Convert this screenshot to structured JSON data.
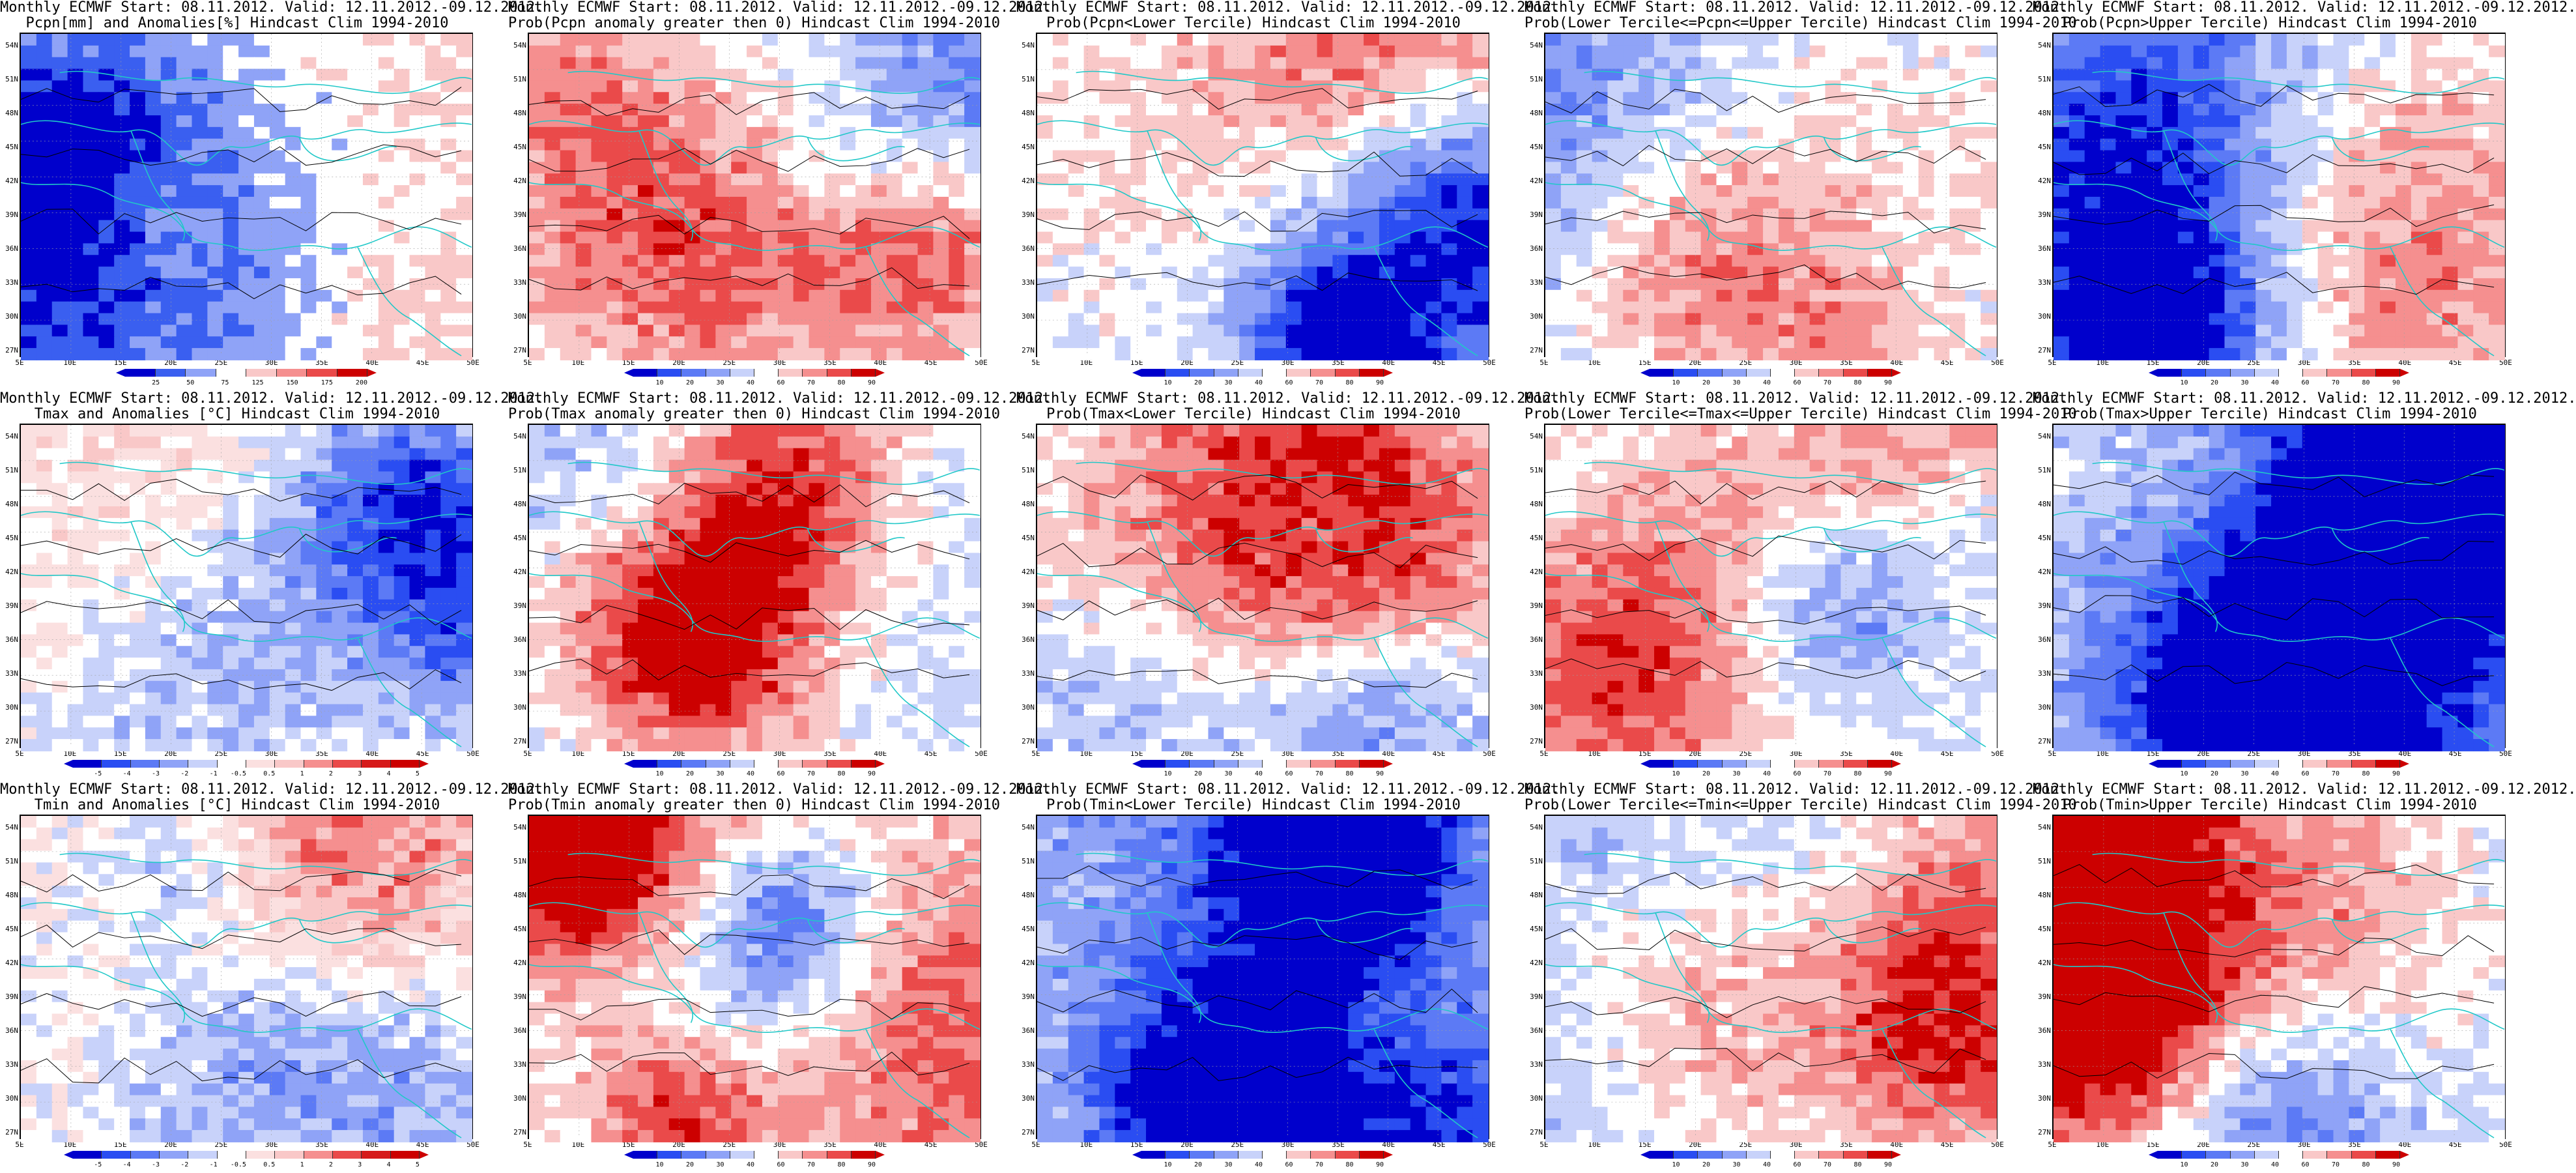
{
  "panels": [
    {
      "title1": "Monthly ECMWF Start: 08.11.2012. Valid: 12.11.2012.-09.12.2012.",
      "title2": "Pcpn[mm] and Anomalies[%] Hindcast Clim 1994-2010",
      "scale": "anom",
      "cb_labels": [
        "25",
        "50",
        "75",
        "125",
        "150",
        "175",
        "200"
      ]
    },
    {
      "title1": "Monthly ECMWF Start: 08.11.2012. Valid: 12.11.2012.-09.12.2012.",
      "title2": "Prob(Pcpn anomaly greater then 0) Hindcast Clim 1994-2010",
      "scale": "prob",
      "cb_labels": [
        "10",
        "20",
        "30",
        "40",
        "60",
        "70",
        "80",
        "90"
      ]
    },
    {
      "title1": "Monthly ECMWF Start: 08.11.2012. Valid: 12.11.2012.-09.12.2012.",
      "title2": "Prob(Pcpn<Lower Tercile) Hindcast Clim 1994-2010",
      "scale": "prob",
      "cb_labels": [
        "10",
        "20",
        "30",
        "40",
        "60",
        "70",
        "80",
        "90"
      ]
    },
    {
      "title1": "Monthly ECMWF Start: 08.11.2012. Valid: 12.11.2012.-09.12.2012.",
      "title2": "Prob(Lower Tercile<=Pcpn<=Upper Tercile) Hindcast Clim 1994-2010",
      "scale": "prob",
      "cb_labels": [
        "10",
        "20",
        "30",
        "40",
        "60",
        "70",
        "80",
        "90"
      ]
    },
    {
      "title1": "Monthly ECMWF Start: 08.11.2012. Valid: 12.11.2012.-09.12.2012.",
      "title2": "Prob(Pcpn>Upper Tercile) Hindcast Clim 1994-2010",
      "scale": "prob",
      "cb_labels": [
        "10",
        "20",
        "30",
        "40",
        "60",
        "70",
        "80",
        "90"
      ]
    },
    {
      "title1": "Monthly ECMWF Start: 08.11.2012. Valid: 12.11.2012.-09.12.2012.",
      "title2": "Tmax and Anomalies [°C] Hindcast Clim 1994-2010",
      "scale": "temp",
      "cb_labels": [
        "-5",
        "-4",
        "-3",
        "-2",
        "-1",
        "-0.5",
        "0.5",
        "1",
        "2",
        "3",
        "4",
        "5"
      ]
    },
    {
      "title1": "Monthly ECMWF Start: 08.11.2012. Valid: 12.11.2012.-09.12.2012.",
      "title2": "Prob(Tmax anomaly greater then 0) Hindcast Clim 1994-2010",
      "scale": "prob",
      "cb_labels": [
        "10",
        "20",
        "30",
        "40",
        "60",
        "70",
        "80",
        "90"
      ]
    },
    {
      "title1": "Monthly ECMWF Start: 08.11.2012. Valid: 12.11.2012.-09.12.2012.",
      "title2": "Prob(Tmax<Lower Tercile) Hindcast Clim 1994-2010",
      "scale": "prob",
      "cb_labels": [
        "10",
        "20",
        "30",
        "40",
        "60",
        "70",
        "80",
        "90"
      ]
    },
    {
      "title1": "Monthly ECMWF Start: 08.11.2012. Valid: 12.11.2012.-09.12.2012.",
      "title2": "Prob(Lower Tercile<=Tmax<=Upper Tercile) Hindcast Clim 1994-2010",
      "scale": "prob",
      "cb_labels": [
        "10",
        "20",
        "30",
        "40",
        "60",
        "70",
        "80",
        "90"
      ]
    },
    {
      "title1": "Monthly ECMWF Start: 08.11.2012. Valid: 12.11.2012.-09.12.2012.",
      "title2": "Prob(Tmax>Upper Tercile) Hindcast Clim 1994-2010",
      "scale": "prob",
      "cb_labels": [
        "10",
        "20",
        "30",
        "40",
        "60",
        "70",
        "80",
        "90"
      ]
    },
    {
      "title1": "Monthly ECMWF Start: 08.11.2012. Valid: 12.11.2012.-09.12.2012.",
      "title2": "Tmin and Anomalies [°C] Hindcast Clim 1994-2010",
      "scale": "temp",
      "cb_labels": [
        "-5",
        "-4",
        "-3",
        "-2",
        "-1",
        "-0.5",
        "0.5",
        "1",
        "2",
        "3",
        "4",
        "5"
      ]
    },
    {
      "title1": "Monthly ECMWF Start: 08.11.2012. Valid: 12.11.2012.-09.12.2012.",
      "title2": "Prob(Tmin anomaly greater then 0) Hindcast Clim 1994-2010",
      "scale": "prob",
      "cb_labels": [
        "10",
        "20",
        "30",
        "40",
        "60",
        "70",
        "80",
        "90"
      ]
    },
    {
      "title1": "Monthly ECMWF Start: 08.11.2012. Valid: 12.11.2012.-09.12.2012.",
      "title2": "Prob(Tmin<Lower Tercile) Hindcast Clim 1994-2010",
      "scale": "prob",
      "cb_labels": [
        "10",
        "20",
        "30",
        "40",
        "60",
        "70",
        "80",
        "90"
      ]
    },
    {
      "title1": "Monthly ECMWF Start: 08.11.2012. Valid: 12.11.2012.-09.12.2012.",
      "title2": "Prob(Lower Tercile<=Tmin<=Upper Tercile) Hindcast Clim 1994-2010",
      "scale": "prob",
      "cb_labels": [
        "10",
        "20",
        "30",
        "40",
        "60",
        "70",
        "80",
        "90"
      ]
    },
    {
      "title1": "Monthly ECMWF Start: 08.11.2012. Valid: 12.11.2012.-09.12.2012.",
      "title2": "Prob(Tmin>Upper Tercile) Hindcast Clim 1994-2010",
      "scale": "prob",
      "cb_labels": [
        "10",
        "20",
        "30",
        "40",
        "60",
        "70",
        "80",
        "90"
      ]
    }
  ],
  "lat_labels": [
    "54N",
    "51N",
    "48N",
    "45N",
    "42N",
    "39N",
    "36N",
    "33N",
    "30N",
    "27N"
  ],
  "lon_labels": [
    "5E",
    "10E",
    "15E",
    "20E",
    "25E",
    "30E",
    "35E",
    "40E",
    "45E",
    "50E"
  ],
  "palettes": {
    "prob": [
      "#0000cc",
      "#2a4df2",
      "#5c7af5",
      "#8fa3f7",
      "#c8d2fa",
      "#ffffff",
      "#f9c8c8",
      "#f58f8f",
      "#ea4a4a",
      "#cc0000"
    ],
    "anom": [
      "#0000cc",
      "#3a5ff0",
      "#8fa3f7",
      "#ffffff",
      "#f9c8c8",
      "#f58f8f",
      "#ea4a4a",
      "#cc0000"
    ],
    "temp": [
      "#0000cc",
      "#2a4df2",
      "#5c7af5",
      "#8fa3f7",
      "#c8d2fa",
      "#ffffff",
      "#fbe0e0",
      "#f9c8c8",
      "#f58f8f",
      "#ea4a4a",
      "#d61a1a",
      "#cc0000"
    ]
  },
  "colors": {
    "coast": "#20c8c8",
    "contour": "#000000",
    "grid": "#a0a0a0"
  }
}
